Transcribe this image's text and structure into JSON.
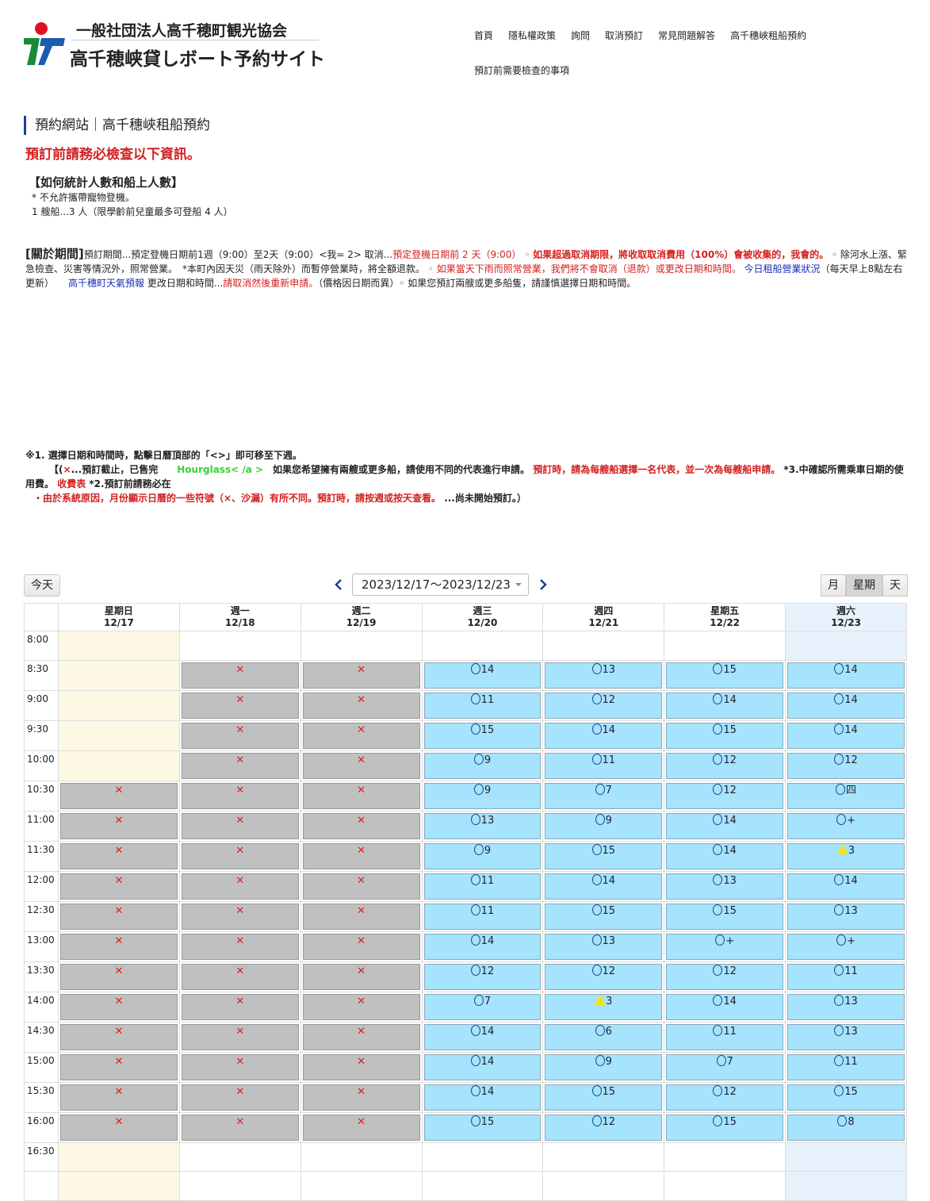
{
  "header": {
    "logo_line1": "一般社団法人高千穂町観光協会",
    "logo_line2": "高千穂峡貸しボート予約サイト",
    "nav": [
      "首頁",
      "隱私權政策",
      "詢問",
      "取消預訂",
      "常見問題解答",
      "高千穗峽租船預約",
      "預訂前需要檢查的事項"
    ]
  },
  "page_title": "預約網站｜高千穗峽租船預約",
  "warning": "預訂前請務必檢查以下資訊。",
  "people": {
    "heading": "【如何統計人數和船上人數】",
    "line1": "* 不允許攜帶寵物登機。",
    "line2": "1 艘船...3 人（限學齡前兒童最多可登船 4 人）"
  },
  "period": {
    "heading": "[關於期間]",
    "t1": "預訂期間...預定登機日期前1週（9:00）至2天（9:00）<我= 2> 取消...",
    "t2": "預定登機日期前 2 天（9:00）",
    "t3": " ◦ ",
    "t4": "如果超過取消期限，將收取取消費用（100%）會被收集的，我會的。",
    "t5": " ◦ 除河水上漲、緊急檢查、災害等情況外，照常營業。　*本町內因天災（雨天除外）而暫停營業時，將全額退款。 ",
    "t6": "◦ 如果當天下雨而照常營業，我們將不會取消（退款）或更改日期和時間。",
    "t7": " 今日租船營業狀況",
    "t8": "（每天早上8點左右更新）　　",
    "t9": "高千穗町天氣預報",
    "t10": " 更改日期和時間...",
    "t11": "請取消然後重新申請。",
    "t12": "（價格因日期而異）◦ 如果您預訂兩艘或更多船隻，請謹慎選擇日期和時間。"
  },
  "notes": {
    "n1": "※1. 選擇日期和時間時，點擊日曆頂部的「<>」即可移至下週。",
    "n2a": "【(",
    "n2b": "×",
    "n2c": "...預訂截止，已售完　　",
    "n2d": "Hourglass< /a >",
    "n2e": "　如果您希望擁有兩艘或更多船，請使用不同的代表進行申請。 ",
    "n2f": "預訂時，請為每艘船選擇一名代表，並一次為每艘船申請。",
    "n2g": " *3.中確認所需乘車日期的使用費。 ",
    "n2h": "收費表",
    "n2i": " *2.預訂前請務必在",
    "n3a": "・由於系統原因，月份顯示日曆的一些符號（×、沙漏）有所不同。預訂時，請按週或按天查看。",
    "n3b": " ...尚未開始預訂。）"
  },
  "toolbar": {
    "today": "今天",
    "range": "2023/12/17～2023/12/23",
    "views": [
      "月",
      "星期",
      "天"
    ],
    "active_view": "星期"
  },
  "colors": {
    "available": "#a6e3fc",
    "closed": "#c0c0c0",
    "cross": "#e02020",
    "few": "#f2e21a",
    "sunday": "#fcf8e3",
    "saturday": "#e8f2fc"
  },
  "calendar": {
    "times": [
      "8:00",
      "8:30",
      "9:00",
      "9:30",
      "10:00",
      "10:30",
      "11:00",
      "11:30",
      "12:00",
      "12:30",
      "13:00",
      "13:30",
      "14:00",
      "14:30",
      "15:00",
      "15:30",
      "16:00",
      "16:30"
    ],
    "days": [
      {
        "name": "星期日",
        "date": "12/17",
        "slots": [
          "",
          "",
          "",
          "",
          "",
          "x",
          "x",
          "x",
          "x",
          "x",
          "x",
          "x",
          "x",
          "x",
          "x",
          "x",
          "x",
          ""
        ]
      },
      {
        "name": "週一",
        "date": "12/18",
        "slots": [
          "",
          "x",
          "x",
          "x",
          "x",
          "x",
          "x",
          "x",
          "x",
          "x",
          "x",
          "x",
          "x",
          "x",
          "x",
          "x",
          "x",
          ""
        ]
      },
      {
        "name": "週二",
        "date": "12/19",
        "slots": [
          "",
          "x",
          "x",
          "x",
          "x",
          "x",
          "x",
          "x",
          "x",
          "x",
          "x",
          "x",
          "x",
          "x",
          "x",
          "x",
          "x",
          ""
        ]
      },
      {
        "name": "週三",
        "date": "12/20",
        "slots": [
          "",
          "o14",
          "o11",
          "o15",
          "o9",
          "o9",
          "o13",
          "o9",
          "o11",
          "o11",
          "o14",
          "o12",
          "o7",
          "o14",
          "o14",
          "o14",
          "o15",
          ""
        ]
      },
      {
        "name": "週四",
        "date": "12/21",
        "slots": [
          "",
          "o13",
          "o12",
          "o14",
          "o11",
          "o7",
          "o9",
          "o15",
          "o14",
          "o15",
          "o13",
          "o12",
          "t3",
          "o6",
          "o9",
          "o15",
          "o12",
          ""
        ]
      },
      {
        "name": "星期五",
        "date": "12/22",
        "slots": [
          "",
          "o15",
          "o14",
          "o15",
          "o12",
          "o12",
          "o14",
          "o14",
          "o13",
          "o15",
          "o+",
          "o12",
          "o14",
          "o11",
          "o7",
          "o12",
          "o15",
          ""
        ]
      },
      {
        "name": "週六",
        "date": "12/23",
        "slots": [
          "",
          "o14",
          "o14",
          "o14",
          "o12",
          "o四",
          "o+",
          "t3",
          "o14",
          "o13",
          "o+",
          "o11",
          "o13",
          "o13",
          "o11",
          "o15",
          "o8",
          ""
        ]
      }
    ]
  }
}
